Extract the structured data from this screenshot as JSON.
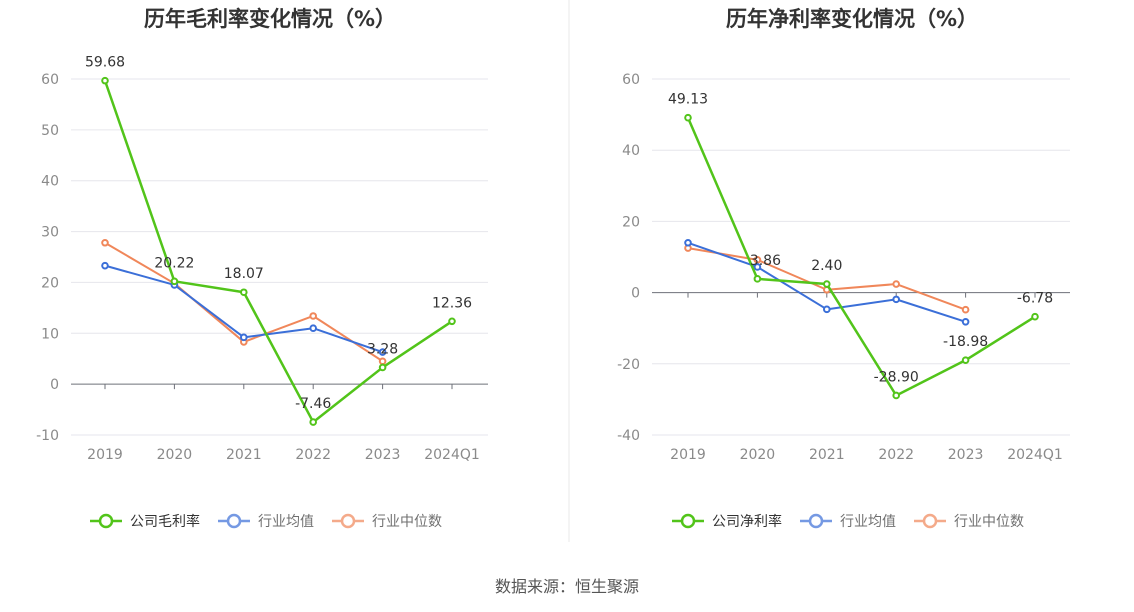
{
  "source": "数据来源：恒生聚源",
  "colors": {
    "company": "#52c41a",
    "avg": "#3b6fd8",
    "median": "#f0875a"
  },
  "chart_data": [
    {
      "type": "line",
      "title": "历年毛利率变化情况（%）",
      "categories": [
        "2019",
        "2020",
        "2021",
        "2022",
        "2023",
        "2024Q1"
      ],
      "ylim": [
        -10,
        60
      ],
      "yticks": [
        -10,
        0,
        10,
        20,
        30,
        40,
        50,
        60
      ],
      "series": [
        {
          "name": "公司毛利率",
          "key": "company",
          "values": [
            59.68,
            20.22,
            18.07,
            -7.46,
            3.28,
            12.36
          ],
          "labels": [
            "59.68",
            "20.22",
            "18.07",
            "-7.46",
            "3.28",
            "12.36"
          ]
        },
        {
          "name": "行业均值",
          "key": "avg",
          "values": [
            23.3,
            19.5,
            9.2,
            11.0,
            6.3,
            null
          ]
        },
        {
          "name": "行业中位数",
          "key": "median",
          "values": [
            27.8,
            19.8,
            8.3,
            13.4,
            4.5,
            null
          ]
        }
      ]
    },
    {
      "type": "line",
      "title": "历年净利率变化情况（%）",
      "categories": [
        "2019",
        "2020",
        "2021",
        "2022",
        "2023",
        "2024Q1"
      ],
      "ylim": [
        -40,
        60
      ],
      "yticks": [
        -40,
        -20,
        0,
        20,
        40,
        60
      ],
      "series": [
        {
          "name": "公司净利率",
          "key": "company",
          "values": [
            49.13,
            3.86,
            2.4,
            -28.9,
            -18.98,
            -6.78
          ],
          "labels": [
            "49.13",
            "3.86",
            "2.40",
            "-28.90",
            "-18.98",
            "-6.78"
          ]
        },
        {
          "name": "行业均值",
          "key": "avg",
          "values": [
            14.0,
            7.2,
            -4.7,
            -1.9,
            -8.2,
            null
          ]
        },
        {
          "name": "行业中位数",
          "key": "median",
          "values": [
            12.5,
            9.2,
            0.8,
            2.4,
            -4.8,
            null
          ]
        }
      ]
    }
  ]
}
